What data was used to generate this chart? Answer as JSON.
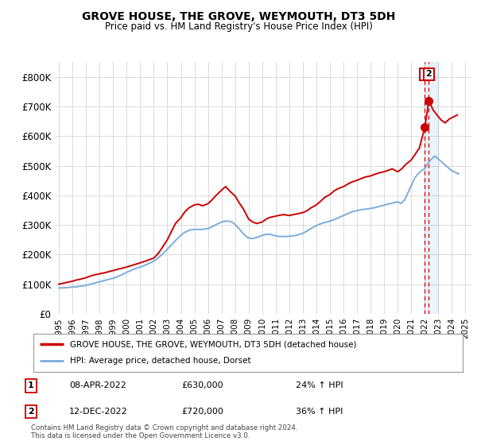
{
  "title": "GROVE HOUSE, THE GROVE, WEYMOUTH, DT3 5DH",
  "subtitle": "Price paid vs. HM Land Registry's House Price Index (HPI)",
  "ylim": [
    0,
    850000
  ],
  "yticks": [
    0,
    100000,
    200000,
    300000,
    400000,
    500000,
    600000,
    700000,
    800000
  ],
  "ytick_labels": [
    "£0",
    "£100K",
    "£200K",
    "£300K",
    "£400K",
    "£500K",
    "£600K",
    "£700K",
    "£800K"
  ],
  "xlim_start": 1994.7,
  "xlim_end": 2025.5,
  "red_color": "#cc0000",
  "blue_color": "#7aadda",
  "legend_label_red": "GROVE HOUSE, THE GROVE, WEYMOUTH, DT3 5DH (detached house)",
  "legend_label_blue": "HPI: Average price, detached house, Dorset",
  "annotation1_date": "08-APR-2022",
  "annotation1_price": "£630,000",
  "annotation1_pct": "24% ↑ HPI",
  "annotation2_date": "12-DEC-2022",
  "annotation2_price": "£720,000",
  "annotation2_pct": "36% ↑ HPI",
  "footnote": "Contains HM Land Registry data © Crown copyright and database right 2024.\nThis data is licensed under the Open Government Licence v3.0.",
  "hpi_x": [
    1995,
    1995.25,
    1995.5,
    1995.75,
    1996,
    1996.25,
    1996.5,
    1996.75,
    1997,
    1997.25,
    1997.5,
    1997.75,
    1998,
    1998.25,
    1998.5,
    1998.75,
    1999,
    1999.25,
    1999.5,
    1999.75,
    2000,
    2000.25,
    2000.5,
    2000.75,
    2001,
    2001.25,
    2001.5,
    2001.75,
    2002,
    2002.25,
    2002.5,
    2002.75,
    2003,
    2003.25,
    2003.5,
    2003.75,
    2004,
    2004.25,
    2004.5,
    2004.75,
    2005,
    2005.25,
    2005.5,
    2005.75,
    2006,
    2006.25,
    2006.5,
    2006.75,
    2007,
    2007.25,
    2007.5,
    2007.75,
    2008,
    2008.25,
    2008.5,
    2008.75,
    2009,
    2009.25,
    2009.5,
    2009.75,
    2010,
    2010.25,
    2010.5,
    2010.75,
    2011,
    2011.25,
    2011.5,
    2011.75,
    2012,
    2012.25,
    2012.5,
    2012.75,
    2013,
    2013.25,
    2013.5,
    2013.75,
    2014,
    2014.25,
    2014.5,
    2014.75,
    2015,
    2015.25,
    2015.5,
    2015.75,
    2016,
    2016.25,
    2016.5,
    2016.75,
    2017,
    2017.25,
    2017.5,
    2017.75,
    2018,
    2018.25,
    2018.5,
    2018.75,
    2019,
    2019.25,
    2019.5,
    2019.75,
    2020,
    2020.25,
    2020.5,
    2020.75,
    2021,
    2021.25,
    2021.5,
    2021.75,
    2022,
    2022.25,
    2022.5,
    2022.75,
    2023,
    2023.25,
    2023.5,
    2023.75,
    2024,
    2024.25,
    2024.5
  ],
  "hpi_y": [
    87000,
    87500,
    88000,
    89000,
    90000,
    91000,
    92500,
    94000,
    96000,
    99000,
    102000,
    105000,
    108000,
    111000,
    114000,
    117000,
    120000,
    124000,
    129000,
    134000,
    140000,
    145000,
    150000,
    154000,
    158000,
    162000,
    167000,
    172000,
    178000,
    186000,
    196000,
    207000,
    218000,
    230000,
    242000,
    254000,
    265000,
    274000,
    280000,
    284000,
    285000,
    285000,
    285000,
    286000,
    288000,
    293000,
    299000,
    305000,
    310000,
    313000,
    313000,
    310000,
    302000,
    290000,
    276000,
    264000,
    256000,
    254000,
    257000,
    260000,
    265000,
    268000,
    269000,
    267000,
    263000,
    261000,
    261000,
    261000,
    262000,
    263000,
    265000,
    268000,
    272000,
    278000,
    285000,
    292000,
    298000,
    303000,
    307000,
    310000,
    313000,
    317000,
    322000,
    327000,
    332000,
    337000,
    342000,
    346000,
    349000,
    351000,
    353000,
    354000,
    356000,
    358000,
    361000,
    364000,
    367000,
    370000,
    373000,
    376000,
    378000,
    373000,
    384000,
    408000,
    433000,
    458000,
    473000,
    483000,
    491000,
    510000,
    523000,
    533000,
    523000,
    513000,
    503000,
    493000,
    483000,
    478000,
    473000
  ],
  "red_x": [
    1995.0,
    1995.3,
    1995.7,
    1996.0,
    1996.3,
    1996.7,
    1997.0,
    1997.5,
    1998.0,
    1998.5,
    1999.0,
    1999.5,
    2000.0,
    2000.5,
    2001.0,
    2001.5,
    2002.0,
    2002.3,
    2002.6,
    2003.0,
    2003.3,
    2003.6,
    2004.0,
    2004.3,
    2004.6,
    2005.0,
    2005.3,
    2005.6,
    2006.0,
    2006.3,
    2006.6,
    2007.0,
    2007.3,
    2007.6,
    2008.0,
    2008.3,
    2008.6,
    2009.0,
    2009.3,
    2009.6,
    2010.0,
    2010.3,
    2010.6,
    2011.0,
    2011.3,
    2011.6,
    2012.0,
    2012.3,
    2012.6,
    2013.0,
    2013.3,
    2013.6,
    2014.0,
    2014.3,
    2014.6,
    2015.0,
    2015.3,
    2015.6,
    2016.0,
    2016.3,
    2016.6,
    2017.0,
    2017.3,
    2017.6,
    2018.0,
    2018.3,
    2018.6,
    2019.0,
    2019.3,
    2019.6,
    2020.0,
    2020.3,
    2020.6,
    2021.0,
    2021.3,
    2021.6,
    2022.0,
    2022.3,
    2022.6,
    2022.9,
    2023.2,
    2023.5,
    2023.8,
    2024.1,
    2024.4
  ],
  "red_y": [
    100000,
    103000,
    107000,
    110000,
    114000,
    118000,
    122000,
    130000,
    135000,
    140000,
    146000,
    152000,
    158000,
    165000,
    172000,
    180000,
    188000,
    202000,
    222000,
    250000,
    278000,
    305000,
    325000,
    345000,
    358000,
    368000,
    370000,
    365000,
    372000,
    385000,
    400000,
    418000,
    430000,
    415000,
    398000,
    375000,
    355000,
    320000,
    310000,
    305000,
    310000,
    320000,
    326000,
    330000,
    333000,
    335000,
    332000,
    335000,
    338000,
    342000,
    348000,
    358000,
    368000,
    380000,
    393000,
    403000,
    415000,
    423000,
    430000,
    438000,
    445000,
    451000,
    457000,
    462000,
    466000,
    471000,
    476000,
    480000,
    485000,
    490000,
    480000,
    490000,
    505000,
    520000,
    540000,
    560000,
    630000,
    720000,
    690000,
    672000,
    655000,
    645000,
    658000,
    665000,
    672000
  ],
  "point1_x": 2022.0,
  "point1_y": 630000,
  "point2_x": 2022.3,
  "point2_y": 720000,
  "background_color": "#ffffff",
  "grid_color": "#cccccc",
  "shade_color": "#ddeeff"
}
